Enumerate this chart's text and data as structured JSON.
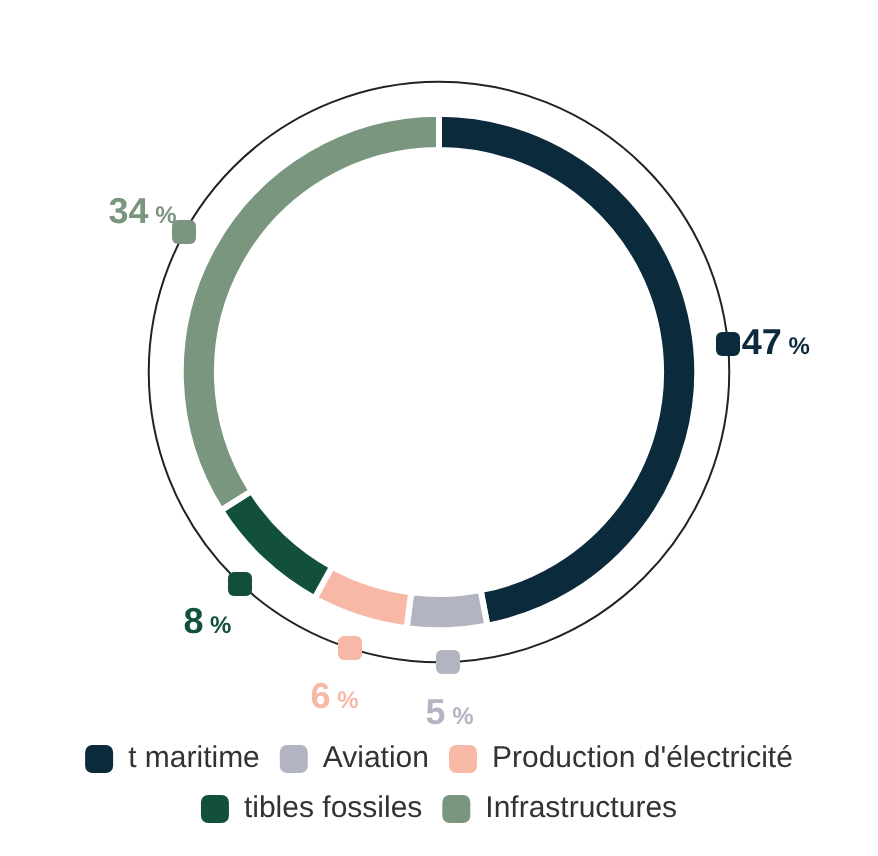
{
  "chart_data": {
    "type": "donut",
    "categories": [
      "t maritime",
      "Aviation",
      "Production d'électricité",
      "tibles fossiles",
      "Infrastructures"
    ],
    "values": [
      47,
      5,
      6,
      8,
      34
    ],
    "value_labels": [
      "47 %",
      "5 %",
      "6 %",
      "8 %",
      "34 %"
    ],
    "colors": [
      "#0b2a3c",
      "#b3b4c2",
      "#f7b8a6",
      "#13503a",
      "#7a967f"
    ],
    "legend": "bottom"
  }
}
